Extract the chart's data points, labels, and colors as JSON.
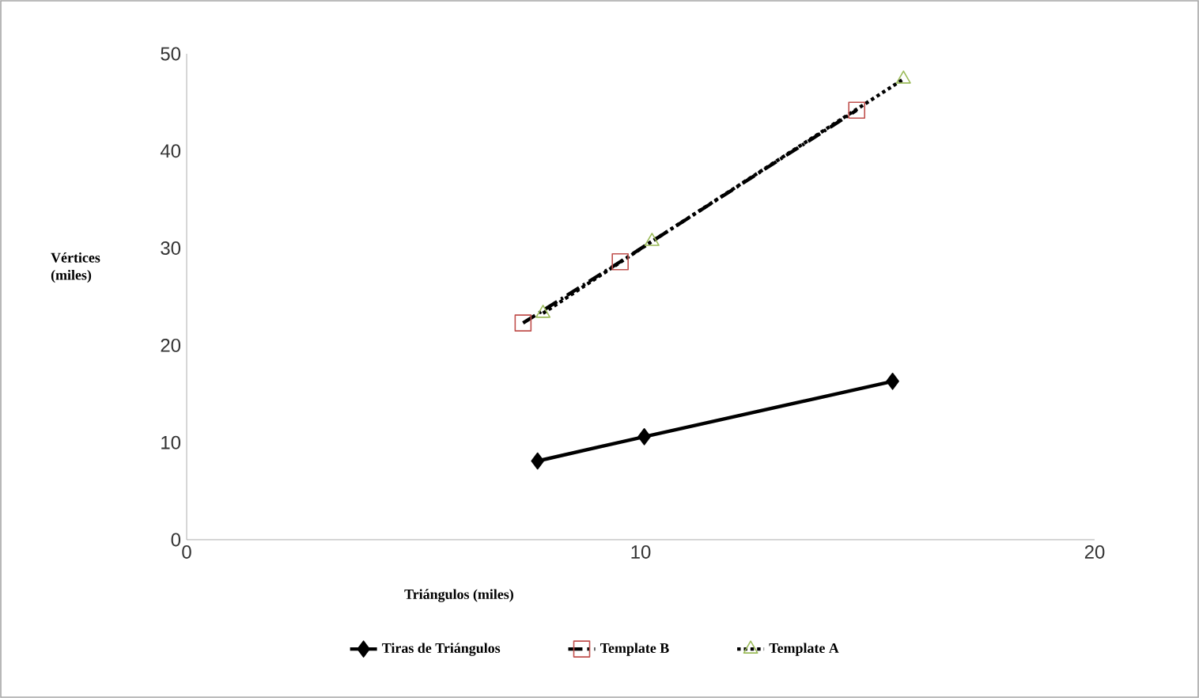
{
  "chart_data": {
    "type": "line",
    "xlabel": "Triángulos (miles)",
    "ylabel": "Vértices (miles)",
    "xlim": [
      0,
      20
    ],
    "xticks": [
      0,
      10,
      20
    ],
    "ylim": [
      0,
      50
    ],
    "yticks": [
      0,
      10,
      20,
      30,
      40,
      50
    ],
    "grid": false,
    "legend": "bottom",
    "series": [
      {
        "name": "Tiras de Triángulos",
        "color": "#000000",
        "marker": "diamond",
        "line_style": "solid",
        "x": [
          7.73,
          10.08,
          15.55
        ],
        "values": [
          8.1,
          10.6,
          16.3
        ]
      },
      {
        "name": "Template B",
        "color": "#c0504d",
        "marker": "square",
        "line_style": "dashdot",
        "x": [
          7.41,
          9.55,
          14.76
        ],
        "values": [
          22.3,
          28.6,
          44.2
        ]
      },
      {
        "name": "Template A",
        "color": "#9bbb59",
        "marker": "triangle",
        "line_style": "dotted",
        "x": [
          7.85,
          10.25,
          15.79
        ],
        "values": [
          23.3,
          30.7,
          47.4
        ]
      }
    ]
  }
}
